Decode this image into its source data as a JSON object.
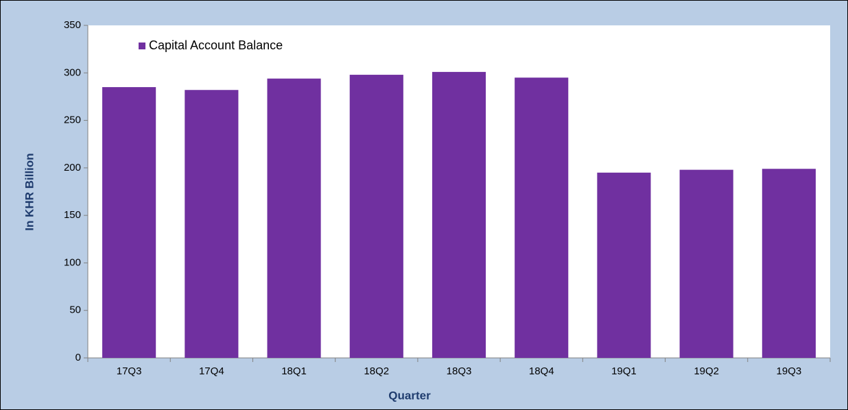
{
  "chart_data": {
    "type": "bar",
    "x_label": "Quarter",
    "y_label": "In KHR Billion",
    "categories": [
      "17Q3",
      "17Q4",
      "18Q1",
      "18Q2",
      "18Q3",
      "18Q4",
      "19Q1",
      "19Q2",
      "19Q3"
    ],
    "series": [
      {
        "name": "Capital Account Balance",
        "color": "#7030a0",
        "values": [
          285,
          282,
          294,
          298,
          301,
          295,
          195,
          198,
          199
        ]
      }
    ],
    "ylim": [
      0,
      350
    ],
    "yticks": [
      0,
      50,
      100,
      150,
      200,
      250,
      300,
      350
    ],
    "grid": false,
    "legend": "upper left"
  }
}
